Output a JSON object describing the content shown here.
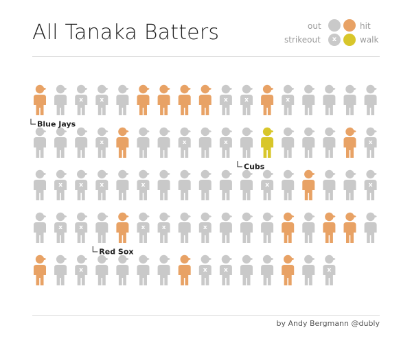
{
  "title": "All Tanaka Batters",
  "credit": "by Andy Bergmann @dubly",
  "legend": {
    "out": "out",
    "hit": "hit",
    "strikeout": "strikeout",
    "walk": "walk",
    "strikeout_mark": "x"
  },
  "colors": {
    "out": "#c9c9c9",
    "hit": "#e8a265",
    "strikeout": "#c9c9c9",
    "walk": "#d8c62a",
    "text": "#222222"
  },
  "chart_data": {
    "type": "pictograph",
    "title": "All Tanaka Batters",
    "outcome_codes": {
      "o": "out",
      "h": "hit",
      "k": "strikeout",
      "w": "walk"
    },
    "rows": [
      [
        "h",
        "o",
        "k",
        "k",
        "o",
        "h",
        "h",
        "h",
        "h",
        "k",
        "k",
        "h",
        "k",
        "o",
        "o",
        "o",
        "o"
      ],
      [
        "o",
        "o",
        "o",
        "k",
        "h",
        "o",
        "o",
        "k",
        "o",
        "k",
        "o",
        "w",
        "o",
        "o",
        "o",
        "h",
        "k"
      ],
      [
        "o",
        "k",
        "k",
        "k",
        "o",
        "k",
        "o",
        "o",
        "o",
        "o",
        "o",
        "k",
        "o",
        "h",
        "o",
        "o",
        "k"
      ],
      [
        "o",
        "k",
        "k",
        "o",
        "h",
        "k",
        "k",
        "o",
        "k",
        "o",
        "o",
        "o",
        "h",
        "o",
        "h",
        "h",
        "o"
      ],
      [
        "h",
        "o",
        "k",
        "o",
        "o",
        "o",
        "o",
        "h",
        "k",
        "k",
        "o",
        "o",
        "h",
        "o",
        "k"
      ]
    ],
    "annotations": [
      {
        "label": "Blue Jays",
        "row": 0,
        "col": 0
      },
      {
        "label": "Cubs",
        "row": 1,
        "col": 10
      },
      {
        "label": "Red Sox",
        "row": 3,
        "col": 3
      }
    ]
  }
}
